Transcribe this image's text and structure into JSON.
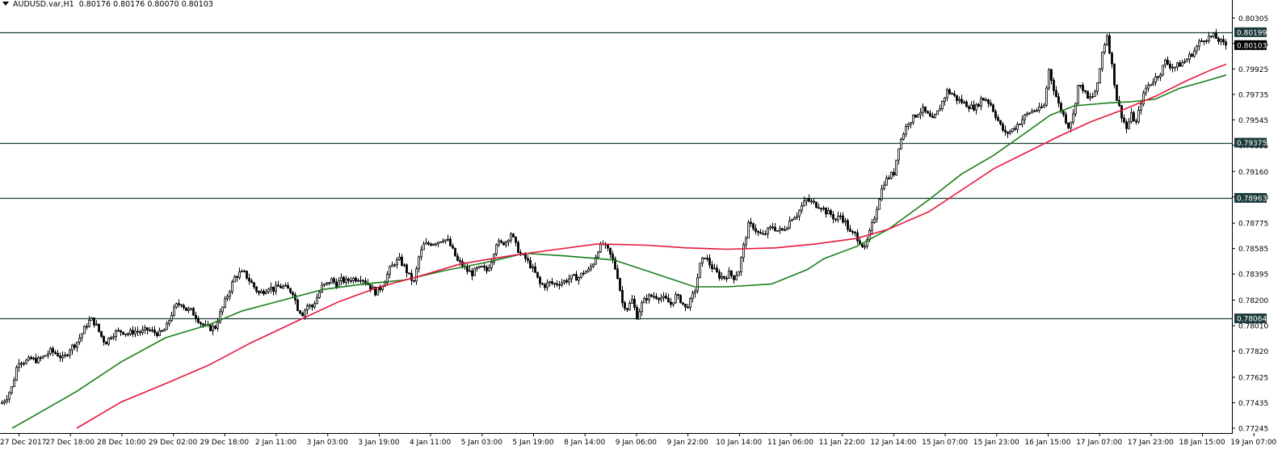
{
  "header": {
    "symbol": "AUDUSD.var,H1",
    "ohlc": "0.80176 0.80176 0.80070 0.80103"
  },
  "colors": {
    "background": "#ffffff",
    "candle": "#000000",
    "ma_fast": "#1a7f1a",
    "ma_slow": "#e8173c",
    "level_line": "#1e3b3b",
    "price_tag_bg": "#1e3b3b",
    "current_tag_bg": "#000000"
  },
  "chart_data": {
    "type": "candlestick",
    "title": "AUDUSD.var,H1",
    "timeframe": "H1",
    "ylim": [
      0.77245,
      0.80385
    ],
    "y_ticks": [
      "0.80305",
      "0.80115",
      "0.79925",
      "0.79735",
      "0.79545",
      "0.79355",
      "0.79160",
      "0.78970",
      "0.78775",
      "0.78585",
      "0.78395",
      "0.78200",
      "0.78010",
      "0.77820",
      "0.77625",
      "0.77435",
      "0.77245"
    ],
    "x_ticks": [
      "27 Dec 2017",
      "27 Dec 18:00",
      "28 Dec 10:00",
      "29 Dec 02:00",
      "29 Dec 18:00",
      "2 Jan 11:00",
      "3 Jan 03:00",
      "3 Jan 19:00",
      "4 Jan 11:00",
      "5 Jan 03:00",
      "5 Jan 19:00",
      "8 Jan 14:00",
      "9 Jan 06:00",
      "9 Jan 22:00",
      "10 Jan 14:00",
      "11 Jan 06:00",
      "11 Jan 22:00",
      "12 Jan 14:00",
      "15 Jan 07:00",
      "15 Jan 23:00",
      "16 Jan 15:00",
      "17 Jan 07:00",
      "17 Jan 23:00",
      "18 Jan 15:00",
      "19 Jan 07:00"
    ],
    "horizontal_levels": [
      "0.80199",
      "0.79375",
      "0.78963",
      "0.78064"
    ],
    "current_price": "0.80103",
    "close_path": [
      [
        0,
        0.7742
      ],
      [
        8,
        0.7748
      ],
      [
        15,
        0.7756
      ],
      [
        22,
        0.7775
      ],
      [
        30,
        0.7774
      ],
      [
        38,
        0.7776
      ],
      [
        46,
        0.7775
      ],
      [
        54,
        0.7778
      ],
      [
        62,
        0.7782
      ],
      [
        70,
        0.778
      ],
      [
        78,
        0.7776
      ],
      [
        86,
        0.7784
      ],
      [
        94,
        0.7788
      ],
      [
        100,
        0.7794
      ],
      [
        106,
        0.7801
      ],
      [
        112,
        0.7806
      ],
      [
        118,
        0.7802
      ],
      [
        124,
        0.7794
      ],
      [
        130,
        0.7788
      ],
      [
        136,
        0.7793
      ],
      [
        142,
        0.7796
      ],
      [
        150,
        0.7797
      ],
      [
        158,
        0.7795
      ],
      [
        166,
        0.7797
      ],
      [
        174,
        0.7796
      ],
      [
        182,
        0.7798
      ],
      [
        190,
        0.7796
      ],
      [
        198,
        0.7795
      ],
      [
        205,
        0.7799
      ],
      [
        212,
        0.781
      ],
      [
        218,
        0.7816
      ],
      [
        224,
        0.7818
      ],
      [
        230,
        0.7813
      ],
      [
        236,
        0.7812
      ],
      [
        242,
        0.7808
      ],
      [
        248,
        0.7803
      ],
      [
        254,
        0.78
      ],
      [
        260,
        0.7799
      ],
      [
        266,
        0.78
      ],
      [
        272,
        0.781
      ],
      [
        278,
        0.7819
      ],
      [
        284,
        0.7828
      ],
      [
        290,
        0.7837
      ],
      [
        296,
        0.784
      ],
      [
        302,
        0.784
      ],
      [
        308,
        0.7835
      ],
      [
        314,
        0.783
      ],
      [
        320,
        0.7825
      ],
      [
        326,
        0.7827
      ],
      [
        332,
        0.783
      ],
      [
        338,
        0.7828
      ],
      [
        344,
        0.783
      ],
      [
        350,
        0.783
      ],
      [
        356,
        0.7828
      ],
      [
        362,
        0.7826
      ],
      [
        368,
        0.7814
      ],
      [
        374,
        0.781
      ],
      [
        380,
        0.7816
      ],
      [
        386,
        0.7815
      ],
      [
        392,
        0.7822
      ],
      [
        398,
        0.783
      ],
      [
        404,
        0.7832
      ],
      [
        410,
        0.7835
      ],
      [
        416,
        0.7832
      ],
      [
        422,
        0.7835
      ],
      [
        428,
        0.7834
      ],
      [
        434,
        0.7836
      ],
      [
        440,
        0.7836
      ],
      [
        446,
        0.7837
      ],
      [
        452,
        0.7834
      ],
      [
        458,
        0.783
      ],
      [
        464,
        0.7826
      ],
      [
        470,
        0.7829
      ],
      [
        476,
        0.7835
      ],
      [
        482,
        0.7843
      ],
      [
        488,
        0.7848
      ],
      [
        494,
        0.785
      ],
      [
        500,
        0.7845
      ],
      [
        506,
        0.7838
      ],
      [
        512,
        0.7833
      ],
      [
        518,
        0.7852
      ],
      [
        524,
        0.7861
      ],
      [
        530,
        0.7862
      ],
      [
        536,
        0.7863
      ],
      [
        542,
        0.7864
      ],
      [
        548,
        0.7866
      ],
      [
        554,
        0.7864
      ],
      [
        560,
        0.7857
      ],
      [
        566,
        0.7849
      ],
      [
        572,
        0.7846
      ],
      [
        578,
        0.7842
      ],
      [
        584,
        0.784
      ],
      [
        590,
        0.7843
      ],
      [
        596,
        0.7844
      ],
      [
        602,
        0.7842
      ],
      [
        608,
        0.785
      ],
      [
        614,
        0.7863
      ],
      [
        620,
        0.7862
      ],
      [
        626,
        0.7864
      ],
      [
        632,
        0.787
      ],
      [
        638,
        0.7861
      ],
      [
        644,
        0.7854
      ],
      [
        650,
        0.7851
      ],
      [
        656,
        0.7846
      ],
      [
        662,
        0.784
      ],
      [
        668,
        0.7832
      ],
      [
        674,
        0.7831
      ],
      [
        680,
        0.7833
      ],
      [
        686,
        0.7832
      ],
      [
        692,
        0.7833
      ],
      [
        698,
        0.7834
      ],
      [
        704,
        0.7836
      ],
      [
        710,
        0.7837
      ],
      [
        716,
        0.7837
      ],
      [
        722,
        0.7841
      ],
      [
        728,
        0.7842
      ],
      [
        734,
        0.7848
      ],
      [
        740,
        0.7858
      ],
      [
        746,
        0.7862
      ],
      [
        752,
        0.7857
      ],
      [
        758,
        0.785
      ],
      [
        764,
        0.7838
      ],
      [
        770,
        0.7818
      ],
      [
        776,
        0.7814
      ],
      [
        782,
        0.782
      ],
      [
        788,
        0.7808
      ],
      [
        794,
        0.7817
      ],
      [
        800,
        0.7822
      ],
      [
        806,
        0.7823
      ],
      [
        812,
        0.7823
      ],
      [
        818,
        0.7822
      ],
      [
        824,
        0.782
      ],
      [
        830,
        0.7817
      ],
      [
        836,
        0.7823
      ],
      [
        842,
        0.782
      ],
      [
        848,
        0.7814
      ],
      [
        854,
        0.7819
      ],
      [
        860,
        0.7828
      ],
      [
        866,
        0.7846
      ],
      [
        872,
        0.7853
      ],
      [
        878,
        0.7847
      ],
      [
        884,
        0.7842
      ],
      [
        890,
        0.7838
      ],
      [
        896,
        0.7837
      ],
      [
        902,
        0.784
      ],
      [
        908,
        0.7837
      ],
      [
        914,
        0.7842
      ],
      [
        920,
        0.786
      ],
      [
        926,
        0.7876
      ],
      [
        932,
        0.7875
      ],
      [
        938,
        0.787
      ],
      [
        944,
        0.7868
      ],
      [
        950,
        0.7872
      ],
      [
        956,
        0.7875
      ],
      [
        962,
        0.7872
      ],
      [
        968,
        0.7872
      ],
      [
        974,
        0.7876
      ],
      [
        980,
        0.7882
      ],
      [
        986,
        0.7884
      ],
      [
        992,
        0.789
      ],
      [
        998,
        0.7895
      ],
      [
        1004,
        0.7893
      ],
      [
        1010,
        0.7891
      ],
      [
        1016,
        0.789
      ],
      [
        1022,
        0.7886
      ],
      [
        1028,
        0.7884
      ],
      [
        1034,
        0.788
      ],
      [
        1040,
        0.7883
      ],
      [
        1046,
        0.7878
      ],
      [
        1052,
        0.787
      ],
      [
        1058,
        0.7869
      ],
      [
        1064,
        0.7864
      ],
      [
        1070,
        0.7858
      ],
      [
        1076,
        0.787
      ],
      [
        1082,
        0.7882
      ],
      [
        1088,
        0.7897
      ],
      [
        1094,
        0.7908
      ],
      [
        1100,
        0.7912
      ],
      [
        1106,
        0.7915
      ],
      [
        1112,
        0.7935
      ],
      [
        1118,
        0.7945
      ],
      [
        1124,
        0.7953
      ],
      [
        1130,
        0.7956
      ],
      [
        1136,
        0.796
      ],
      [
        1142,
        0.7962
      ],
      [
        1148,
        0.7958
      ],
      [
        1154,
        0.7954
      ],
      [
        1160,
        0.796
      ],
      [
        1166,
        0.7968
      ],
      [
        1172,
        0.7976
      ],
      [
        1178,
        0.7974
      ],
      [
        1184,
        0.797
      ],
      [
        1190,
        0.7968
      ],
      [
        1196,
        0.7966
      ],
      [
        1202,
        0.7964
      ],
      [
        1208,
        0.7964
      ],
      [
        1214,
        0.797
      ],
      [
        1220,
        0.797
      ],
      [
        1226,
        0.7966
      ],
      [
        1232,
        0.7958
      ],
      [
        1238,
        0.795
      ],
      [
        1244,
        0.7944
      ],
      [
        1250,
        0.7946
      ],
      [
        1256,
        0.7949
      ],
      [
        1262,
        0.7953
      ],
      [
        1268,
        0.7957
      ],
      [
        1274,
        0.796
      ],
      [
        1280,
        0.7962
      ],
      [
        1286,
        0.7962
      ],
      [
        1292,
        0.7965
      ],
      [
        1298,
        0.7992
      ],
      [
        1304,
        0.7978
      ],
      [
        1310,
        0.7966
      ],
      [
        1316,
        0.7958
      ],
      [
        1322,
        0.795
      ],
      [
        1328,
        0.7958
      ],
      [
        1334,
        0.798
      ],
      [
        1340,
        0.7978
      ],
      [
        1346,
        0.797
      ],
      [
        1352,
        0.7972
      ],
      [
        1358,
        0.798
      ],
      [
        1364,
        0.8005
      ],
      [
        1370,
        0.8018
      ],
      [
        1376,
        0.7995
      ],
      [
        1382,
        0.797
      ],
      [
        1388,
        0.7958
      ],
      [
        1394,
        0.7948
      ],
      [
        1400,
        0.7958
      ],
      [
        1406,
        0.7952
      ],
      [
        1412,
        0.7968
      ],
      [
        1418,
        0.7978
      ],
      [
        1424,
        0.7982
      ],
      [
        1430,
        0.7986
      ],
      [
        1436,
        0.799
      ],
      [
        1442,
        0.7998
      ],
      [
        1448,
        0.7995
      ],
      [
        1454,
        0.7994
      ],
      [
        1460,
        0.7996
      ],
      [
        1466,
        0.7998
      ],
      [
        1472,
        0.8002
      ],
      [
        1478,
        0.8006
      ],
      [
        1484,
        0.8012
      ],
      [
        1490,
        0.8015
      ],
      [
        1496,
        0.8016
      ],
      [
        1502,
        0.8017
      ],
      [
        1508,
        0.8014
      ],
      [
        1514,
        0.8011
      ],
      [
        1518,
        0.80103
      ]
    ],
    "series": [
      {
        "type": "line",
        "color": "#1a7f1a",
        "points": [
          [
            15,
            0.77245
          ],
          [
            40,
            0.7733
          ],
          [
            95,
            0.7752
          ],
          [
            150,
            0.7774
          ],
          [
            205,
            0.7792
          ],
          [
            260,
            0.7802
          ],
          [
            300,
            0.7812
          ],
          [
            350,
            0.782
          ],
          [
            400,
            0.7828
          ],
          [
            450,
            0.7832
          ],
          [
            500,
            0.7835
          ],
          [
            550,
            0.7842
          ],
          [
            600,
            0.7848
          ],
          [
            650,
            0.7855
          ],
          [
            700,
            0.7853
          ],
          [
            760,
            0.785
          ],
          [
            800,
            0.7842
          ],
          [
            830,
            0.7836
          ],
          [
            860,
            0.783
          ],
          [
            900,
            0.783
          ],
          [
            955,
            0.7832
          ],
          [
            1000,
            0.7843
          ],
          [
            1020,
            0.7851
          ],
          [
            1060,
            0.786
          ],
          [
            1100,
            0.7873
          ],
          [
            1150,
            0.7895
          ],
          [
            1190,
            0.7914
          ],
          [
            1230,
            0.7928
          ],
          [
            1270,
            0.7945
          ],
          [
            1300,
            0.7958
          ],
          [
            1330,
            0.7965
          ],
          [
            1370,
            0.7967
          ],
          [
            1400,
            0.7968
          ],
          [
            1430,
            0.797
          ],
          [
            1460,
            0.7978
          ],
          [
            1490,
            0.7983
          ],
          [
            1518,
            0.7988
          ]
        ]
      },
      {
        "type": "line",
        "color": "#e8173c",
        "points": [
          [
            95,
            0.77245
          ],
          [
            150,
            0.7744
          ],
          [
            210,
            0.7759
          ],
          [
            260,
            0.7772
          ],
          [
            310,
            0.7788
          ],
          [
            370,
            0.7805
          ],
          [
            420,
            0.7819
          ],
          [
            470,
            0.783
          ],
          [
            520,
            0.7838
          ],
          [
            570,
            0.7847
          ],
          [
            630,
            0.7853
          ],
          [
            690,
            0.7858
          ],
          [
            740,
            0.7862
          ],
          [
            800,
            0.7861
          ],
          [
            850,
            0.7859
          ],
          [
            900,
            0.7858
          ],
          [
            960,
            0.7859
          ],
          [
            1010,
            0.7862
          ],
          [
            1060,
            0.7866
          ],
          [
            1100,
            0.7873
          ],
          [
            1150,
            0.7886
          ],
          [
            1190,
            0.7902
          ],
          [
            1230,
            0.7918
          ],
          [
            1270,
            0.793
          ],
          [
            1310,
            0.7942
          ],
          [
            1350,
            0.7953
          ],
          [
            1390,
            0.7962
          ],
          [
            1430,
            0.7972
          ],
          [
            1470,
            0.7984
          ],
          [
            1500,
            0.7992
          ],
          [
            1518,
            0.7996
          ]
        ]
      }
    ]
  }
}
